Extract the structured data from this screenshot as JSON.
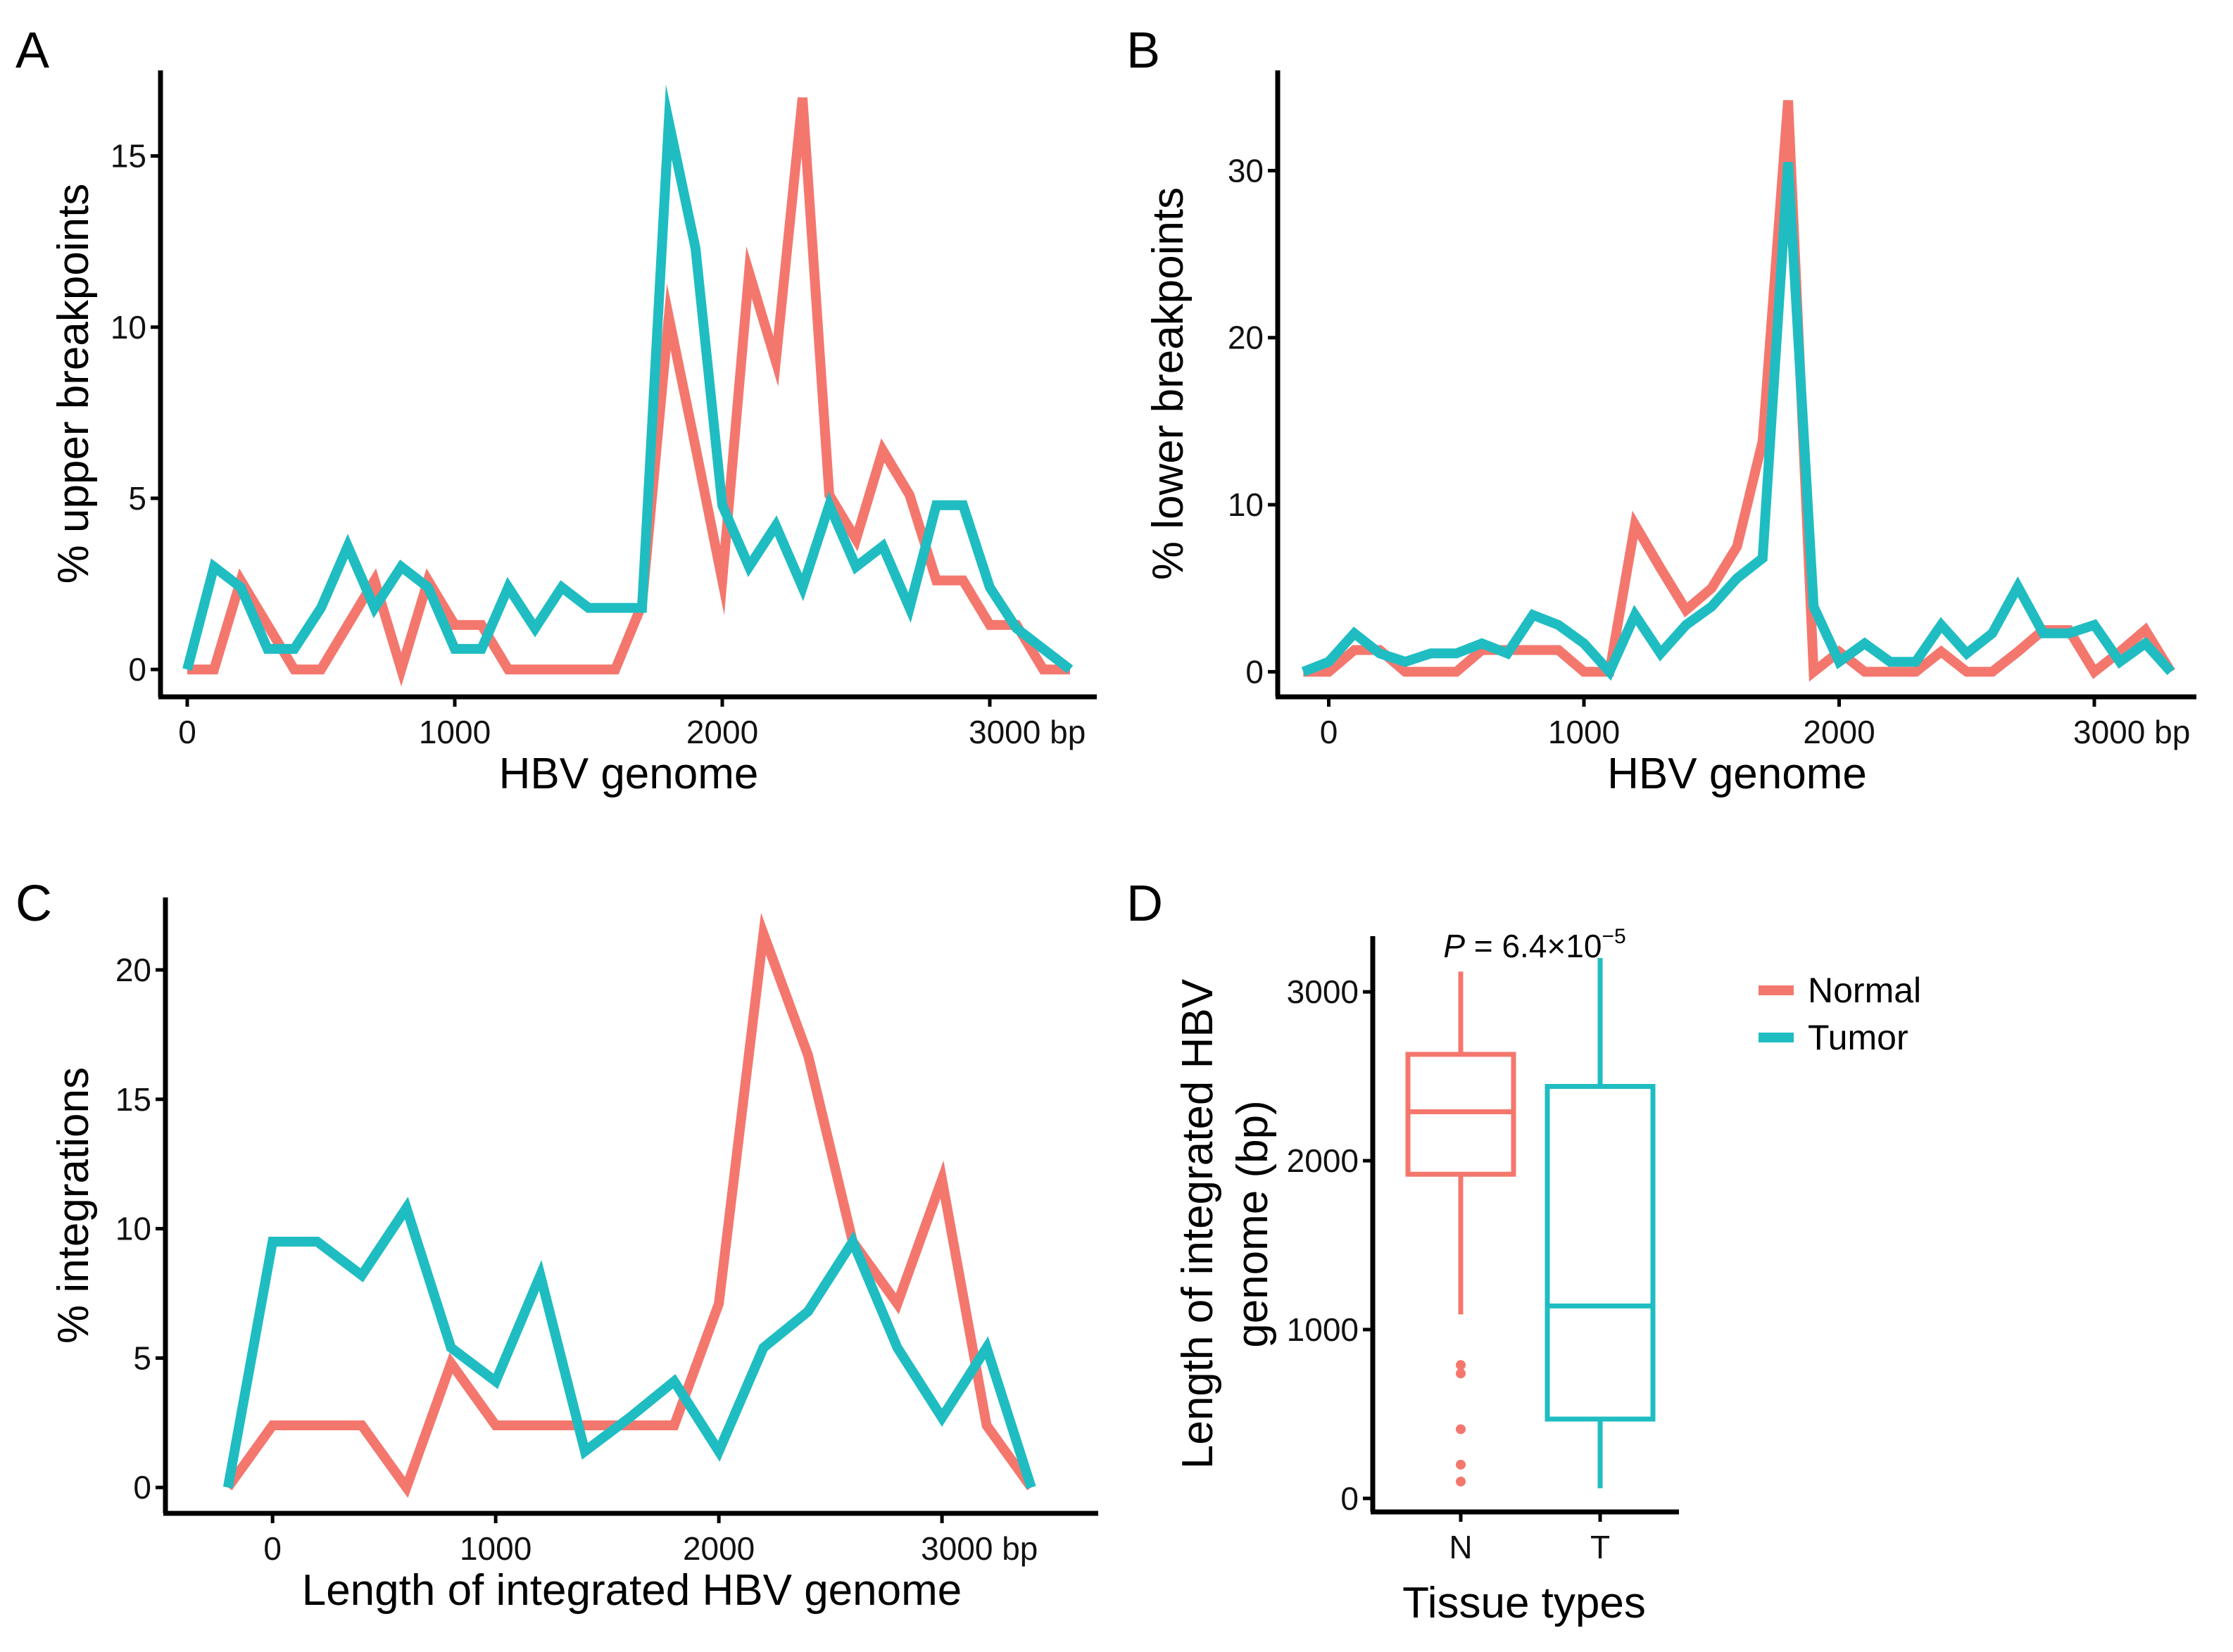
{
  "figure": {
    "colors": {
      "Normal": "#F4776E",
      "Tumor": "#1FBDC2",
      "axis": "#000000"
    },
    "legend": {
      "items": [
        "Normal",
        "Tumor"
      ]
    }
  },
  "chart_data": [
    {
      "panel": "A",
      "type": "line",
      "title": "",
      "xlabel": "HBV genome",
      "ylabel": "% upper breakpoints",
      "xlim": [
        -100,
        3400
      ],
      "ylim": [
        -0.8,
        17.5
      ],
      "xticks": [
        0,
        1000,
        2000,
        3000
      ],
      "xtick_labels": [
        "0",
        "1000",
        "2000",
        "3000 bp"
      ],
      "yticks": [
        0,
        5,
        10,
        15
      ],
      "ytick_labels": [
        "0",
        "5",
        "10",
        "15"
      ],
      "series": [
        {
          "name": "Normal",
          "x": [
            0,
            100,
            200,
            300,
            400,
            500,
            600,
            700,
            800,
            900,
            1000,
            1100,
            1200,
            1300,
            1400,
            1500,
            1600,
            1700,
            1800,
            1900,
            2000,
            2100,
            2200,
            2300,
            2400,
            2500,
            2600,
            2700,
            2800,
            2900,
            3000,
            3100,
            3200,
            3300
          ],
          "y": [
            0,
            0,
            2.6,
            1.3,
            0,
            0,
            1.3,
            2.6,
            0,
            2.6,
            1.3,
            1.3,
            0,
            0,
            0,
            0,
            0,
            1.9,
            10.3,
            6.5,
            2.6,
            11.6,
            9,
            16.7,
            5.1,
            3.8,
            6.4,
            5.1,
            2.6,
            2.6,
            1.3,
            1.3,
            0,
            0
          ]
        },
        {
          "name": "Tumor",
          "x": [
            0,
            100,
            200,
            300,
            400,
            500,
            600,
            700,
            800,
            900,
            1000,
            1100,
            1200,
            1300,
            1400,
            1500,
            1600,
            1700,
            1800,
            1900,
            2000,
            2100,
            2200,
            2300,
            2400,
            2500,
            2600,
            2700,
            2800,
            2900,
            3000,
            3100,
            3200,
            3300
          ],
          "y": [
            0,
            3,
            2.4,
            0.6,
            0.6,
            1.8,
            3.6,
            1.8,
            3,
            2.4,
            0.6,
            0.6,
            2.4,
            1.2,
            2.4,
            1.8,
            1.8,
            1.8,
            16,
            12.3,
            4.8,
            3,
            4.2,
            2.4,
            4.8,
            3,
            3.6,
            1.8,
            4.8,
            4.8,
            2.4,
            1.2,
            0.6,
            0
          ]
        }
      ]
    },
    {
      "panel": "B",
      "type": "line",
      "title": "",
      "xlabel": "HBV genome",
      "ylabel": "% lower breakpoints",
      "xlim": [
        -200,
        3400
      ],
      "ylim": [
        -1.5,
        36
      ],
      "xticks": [
        0,
        1000,
        2000,
        3000
      ],
      "xtick_labels": [
        "0",
        "1000",
        "2000",
        "3000 bp"
      ],
      "yticks": [
        0,
        10,
        20,
        30
      ],
      "ytick_labels": [
        "0",
        "10",
        "20",
        "30"
      ],
      "series": [
        {
          "name": "Normal",
          "x": [
            -100,
            0,
            100,
            200,
            300,
            400,
            500,
            600,
            700,
            800,
            900,
            1000,
            1100,
            1200,
            1300,
            1400,
            1500,
            1600,
            1700,
            1800,
            1900,
            2000,
            2100,
            2200,
            2300,
            2400,
            2500,
            2600,
            2700,
            2800,
            2900,
            3000,
            3100,
            3200,
            3300
          ],
          "y": [
            0,
            0,
            1.3,
            1.3,
            0,
            0,
            0,
            1.3,
            1.3,
            1.3,
            1.3,
            0,
            0,
            8.8,
            6.2,
            3.7,
            5,
            7.5,
            13.8,
            34.2,
            0,
            1.2,
            0,
            0,
            0,
            1.2,
            0,
            0,
            1.2,
            2.5,
            2.5,
            0,
            1.2,
            2.5,
            0
          ]
        },
        {
          "name": "Tumor",
          "x": [
            -100,
            0,
            100,
            200,
            300,
            400,
            500,
            600,
            700,
            800,
            900,
            1000,
            1100,
            1200,
            1300,
            1400,
            1500,
            1600,
            1700,
            1800,
            1900,
            2000,
            2100,
            2200,
            2300,
            2400,
            2500,
            2600,
            2700,
            2800,
            2900,
            3000,
            3100,
            3200,
            3300
          ],
          "y": [
            0,
            0.6,
            2.3,
            1.1,
            0.6,
            1.1,
            1.1,
            1.7,
            1.1,
            3.4,
            2.8,
            1.7,
            0,
            3.4,
            1.1,
            2.8,
            3.9,
            5.6,
            6.8,
            30.5,
            3.9,
            0.6,
            1.7,
            0.6,
            0.6,
            2.8,
            1.1,
            2.3,
            5.1,
            2.3,
            2.3,
            2.8,
            0.6,
            1.7,
            0
          ]
        }
      ]
    },
    {
      "panel": "C",
      "type": "line",
      "title": "",
      "xlabel": "Length of integrated HBV genome",
      "ylabel": "% integrations",
      "xlim": [
        -480,
        3700
      ],
      "ylim": [
        -1,
        22.8
      ],
      "xticks": [
        0,
        1000,
        2000,
        3000
      ],
      "xtick_labels": [
        "0",
        "1000",
        "2000",
        "3000 bp"
      ],
      "yticks": [
        0,
        5,
        10,
        15,
        20
      ],
      "ytick_labels": [
        "0",
        "5",
        "10",
        "15",
        "20"
      ],
      "series": [
        {
          "name": "Normal",
          "x": [
            -200,
            0,
            200,
            400,
            600,
            800,
            1000,
            1200,
            1400,
            1600,
            1800,
            2000,
            2200,
            2400,
            2600,
            2800,
            3000,
            3200,
            3400
          ],
          "y": [
            0,
            2.4,
            2.4,
            2.4,
            0,
            4.8,
            2.4,
            2.4,
            2.4,
            2.4,
            2.4,
            7.1,
            21.4,
            16.7,
            9.5,
            7.1,
            11.9,
            2.4,
            0
          ]
        },
        {
          "name": "Tumor",
          "x": [
            -200,
            0,
            200,
            400,
            600,
            800,
            1000,
            1200,
            1400,
            1600,
            1800,
            2000,
            2200,
            2400,
            2600,
            2800,
            3000,
            3200,
            3400
          ],
          "y": [
            0,
            9.5,
            9.5,
            8.2,
            10.8,
            5.4,
            4.1,
            8.2,
            1.4,
            2.7,
            4.1,
            1.4,
            5.4,
            6.8,
            9.5,
            5.4,
            2.7,
            5.4,
            0
          ]
        }
      ]
    },
    {
      "panel": "D",
      "type": "box",
      "title": "",
      "annotation": {
        "prefix": "P",
        "text": " = 6.4×10",
        "exponent": "−5"
      },
      "xlabel": "Tissue types",
      "ylabel_line1": "Length of integrated HBV",
      "ylabel_line2": "genome (bp)",
      "ylim": [
        -80,
        3330
      ],
      "yticks": [
        0,
        1000,
        2000,
        3000
      ],
      "ytick_labels": [
        "0",
        "1000",
        "2000",
        "3000"
      ],
      "categories": [
        "N",
        "T"
      ],
      "boxes": [
        {
          "name": "Normal",
          "whisker_low": 1090,
          "q1": 1920,
          "median": 2290,
          "q3": 2630,
          "whisker_high": 3120,
          "outliers": [
            100,
            200,
            410,
            740,
            790
          ]
        },
        {
          "name": "Tumor",
          "whisker_low": 60,
          "q1": 470,
          "median": 1140,
          "q3": 2440,
          "whisker_high": 3200,
          "outliers": []
        }
      ]
    }
  ]
}
